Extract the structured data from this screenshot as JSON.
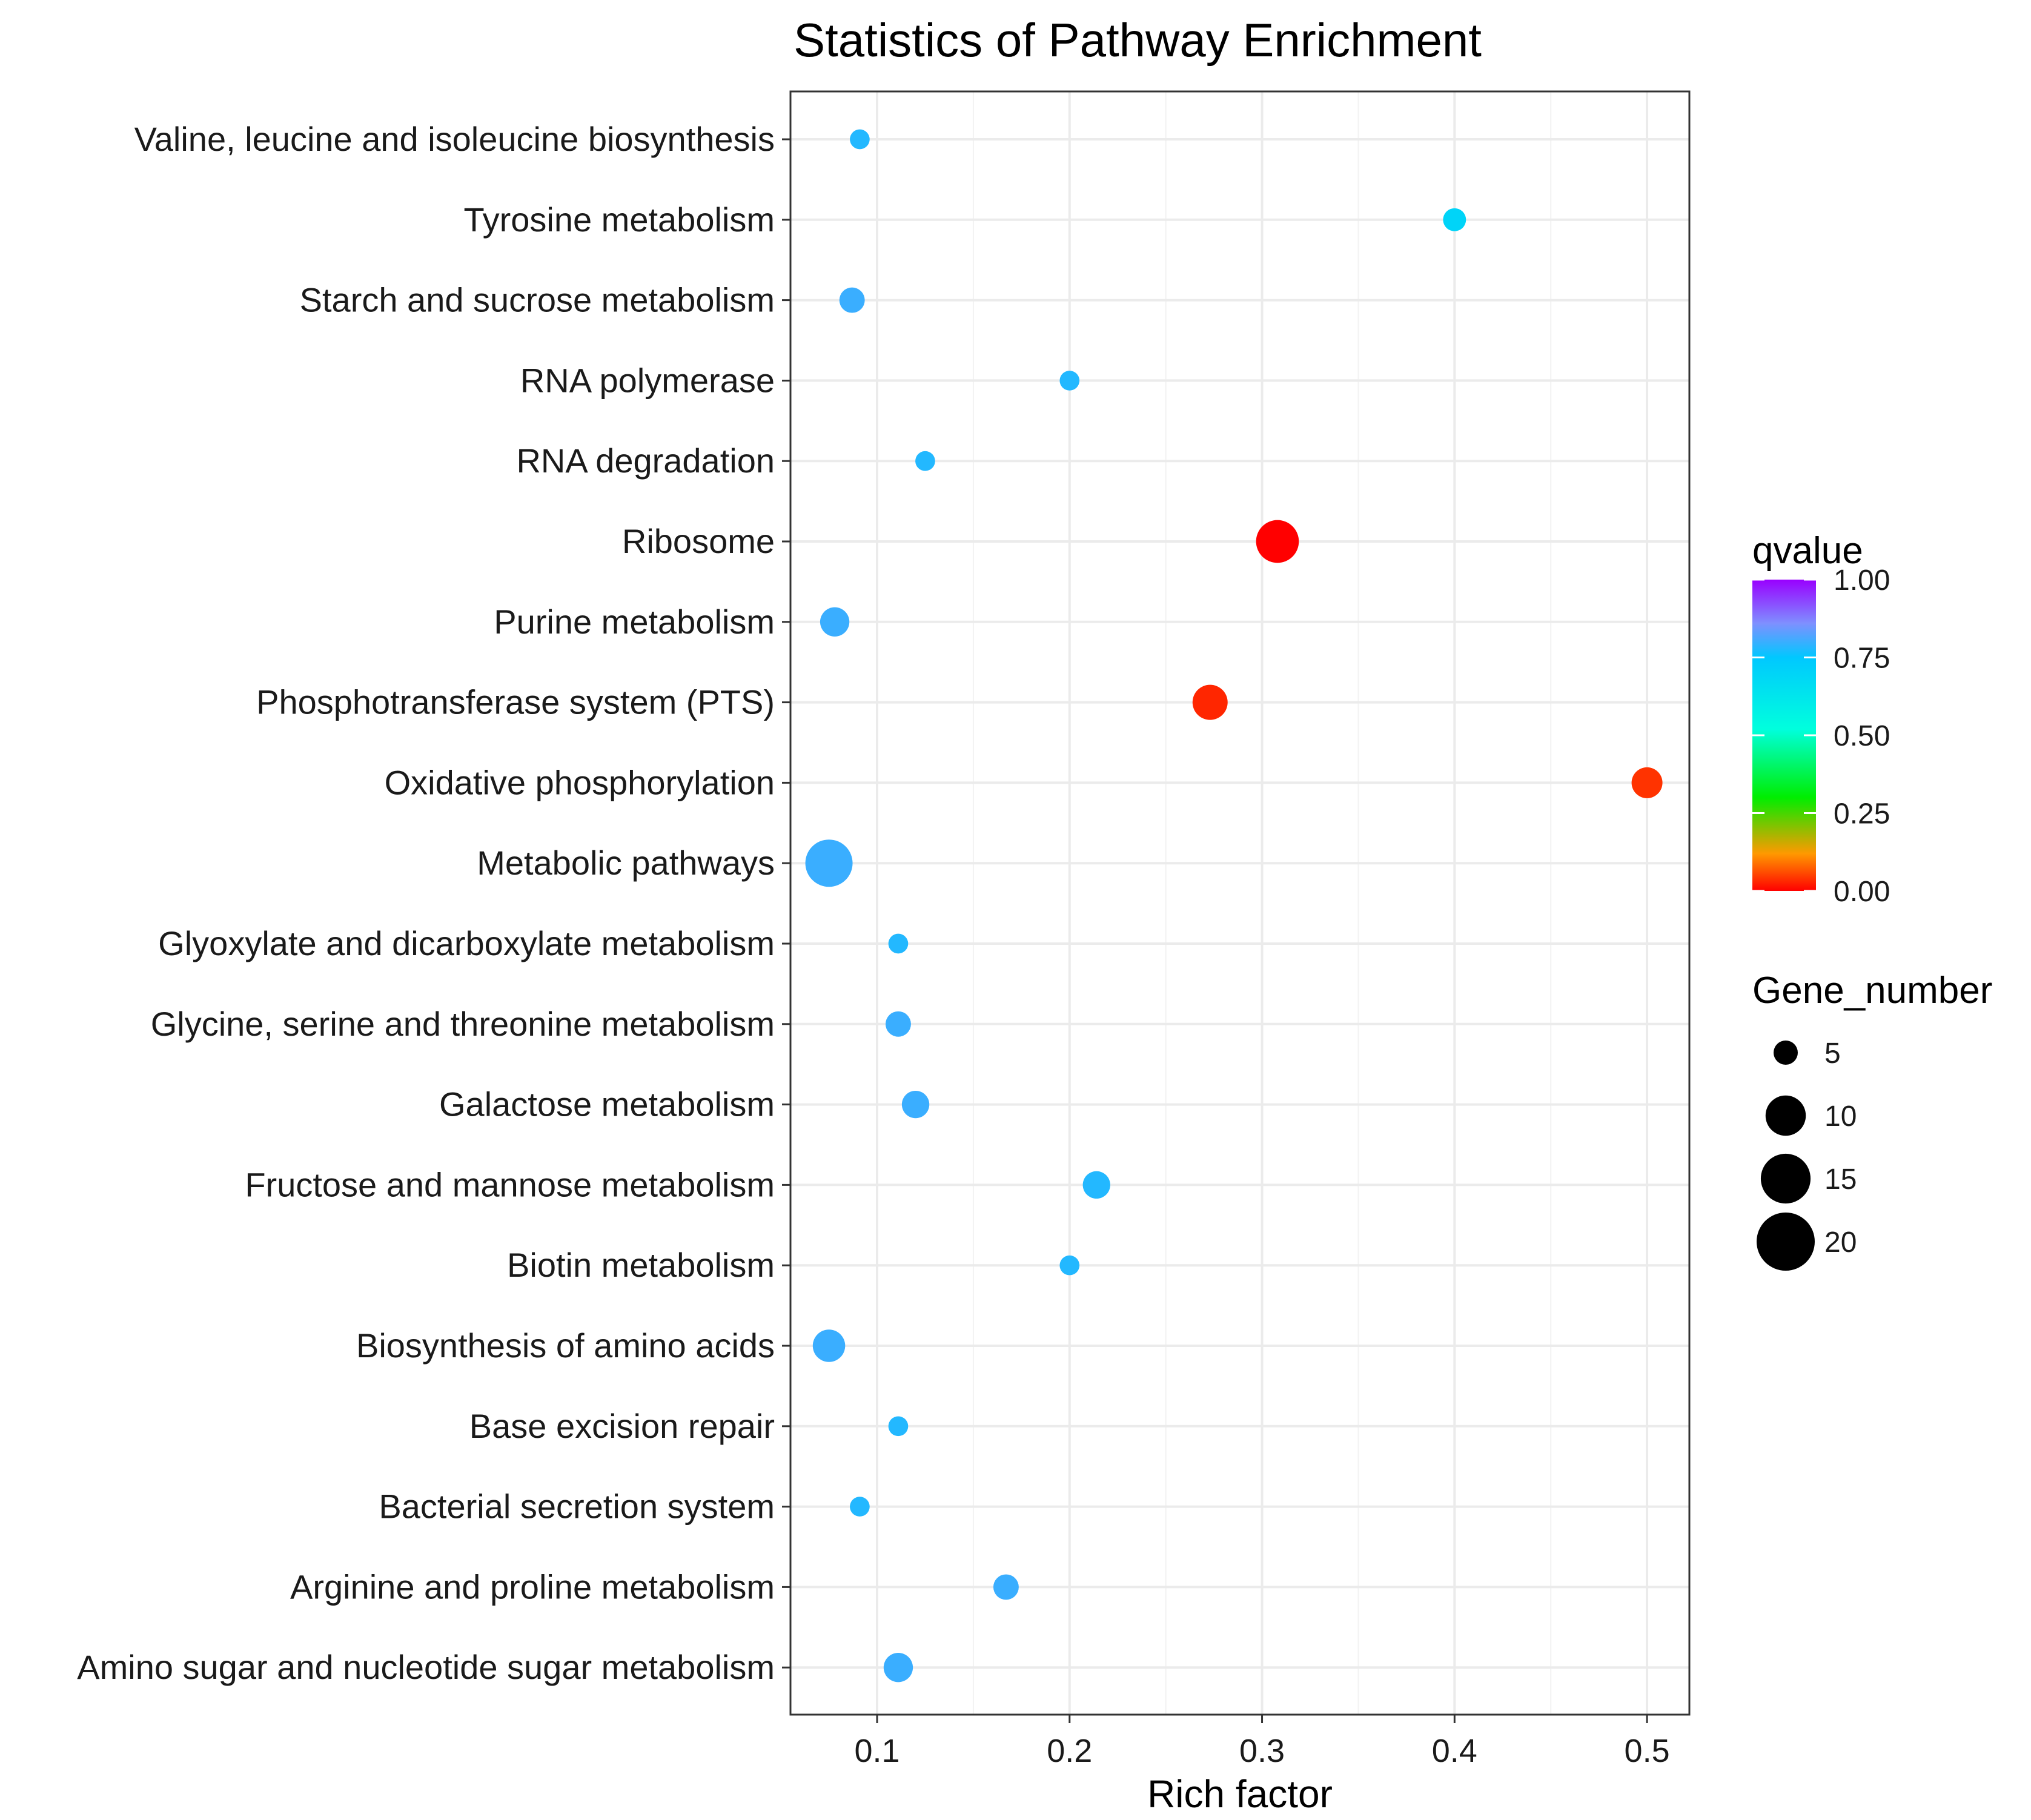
{
  "chart_data": {
    "type": "scatter",
    "title": "Statistics of Pathway Enrichment",
    "xlabel": "Rich factor",
    "ylabel": "",
    "xlim": [
      0.055,
      0.522
    ],
    "xticks": [
      0.1,
      0.2,
      0.3,
      0.4,
      0.5
    ],
    "xtick_labels": [
      "0.1",
      "0.2",
      "0.3",
      "0.4",
      "0.5"
    ],
    "grid": true,
    "categories": [
      "Valine, leucine and isoleucine biosynthesis",
      "Tyrosine metabolism",
      "Starch and sucrose metabolism",
      "RNA polymerase",
      "RNA degradation",
      "Ribosome",
      "Purine metabolism",
      "Phosphotransferase system (PTS)",
      "Oxidative phosphorylation",
      "Metabolic pathways",
      "Glyoxylate and dicarboxylate metabolism",
      "Glycine, serine and threonine metabolism",
      "Galactose metabolism",
      "Fructose and mannose metabolism",
      "Biotin metabolism",
      "Biosynthesis of amino acids",
      "Base excision repair",
      "Bacterial secretion system",
      "Arginine and proline metabolism",
      "Amino sugar and nucleotide sugar metabolism"
    ],
    "points": [
      {
        "pathway": "Valine, leucine and isoleucine biosynthesis",
        "rich_factor": 0.091,
        "gene_number": 1,
        "qvalue": 0.78
      },
      {
        "pathway": "Tyrosine metabolism",
        "rich_factor": 0.4,
        "gene_number": 2,
        "qvalue": 0.7
      },
      {
        "pathway": "Starch and sucrose metabolism",
        "rich_factor": 0.087,
        "gene_number": 3,
        "qvalue": 0.8
      },
      {
        "pathway": "RNA polymerase",
        "rich_factor": 0.2,
        "gene_number": 1,
        "qvalue": 0.78
      },
      {
        "pathway": "RNA degradation",
        "rich_factor": 0.125,
        "gene_number": 1,
        "qvalue": 0.78
      },
      {
        "pathway": "Ribosome",
        "rich_factor": 0.308,
        "gene_number": 16,
        "qvalue": 0.0
      },
      {
        "pathway": "Purine metabolism",
        "rich_factor": 0.078,
        "gene_number": 5,
        "qvalue": 0.8
      },
      {
        "pathway": "Phosphotransferase system (PTS)",
        "rich_factor": 0.273,
        "gene_number": 9,
        "qvalue": 0.03
      },
      {
        "pathway": "Oxidative phosphorylation",
        "rich_factor": 0.5,
        "gene_number": 6,
        "qvalue": 0.04
      },
      {
        "pathway": "Metabolic pathways",
        "rich_factor": 0.075,
        "gene_number": 21,
        "qvalue": 0.8
      },
      {
        "pathway": "Glyoxylate and dicarboxylate metabolism",
        "rich_factor": 0.111,
        "gene_number": 1,
        "qvalue": 0.78
      },
      {
        "pathway": "Glycine, serine and threonine metabolism",
        "rich_factor": 0.111,
        "gene_number": 3,
        "qvalue": 0.8
      },
      {
        "pathway": "Galactose metabolism",
        "rich_factor": 0.12,
        "gene_number": 4,
        "qvalue": 0.8
      },
      {
        "pathway": "Fructose and mannose metabolism",
        "rich_factor": 0.214,
        "gene_number": 4,
        "qvalue": 0.78
      },
      {
        "pathway": "Biotin metabolism",
        "rich_factor": 0.2,
        "gene_number": 1,
        "qvalue": 0.78
      },
      {
        "pathway": "Biosynthesis of amino acids",
        "rich_factor": 0.075,
        "gene_number": 7,
        "qvalue": 0.8
      },
      {
        "pathway": "Base excision repair",
        "rich_factor": 0.111,
        "gene_number": 1,
        "qvalue": 0.78
      },
      {
        "pathway": "Bacterial secretion system",
        "rich_factor": 0.091,
        "gene_number": 1,
        "qvalue": 0.78
      },
      {
        "pathway": "Arginine and proline metabolism",
        "rich_factor": 0.167,
        "gene_number": 3,
        "qvalue": 0.8
      },
      {
        "pathway": "Amino sugar and nucleotide sugar metabolism",
        "rich_factor": 0.111,
        "gene_number": 5,
        "qvalue": 0.8
      }
    ],
    "color_legend": {
      "title": "qvalue",
      "ticks": [
        1.0,
        0.75,
        0.5,
        0.25,
        0.0
      ],
      "tick_labels": [
        "1.00",
        "0.75",
        "0.50",
        "0.25",
        "0.00"
      ],
      "gradient_colors": [
        "#ff0000",
        "#ff9900",
        "#00ff00",
        "#00ffff",
        "#7f8fff",
        "#9900ff"
      ]
    },
    "size_legend": {
      "title": "Gene_number",
      "values": [
        5,
        10,
        15,
        20
      ],
      "labels": [
        "5",
        "10",
        "15",
        "20"
      ]
    }
  }
}
